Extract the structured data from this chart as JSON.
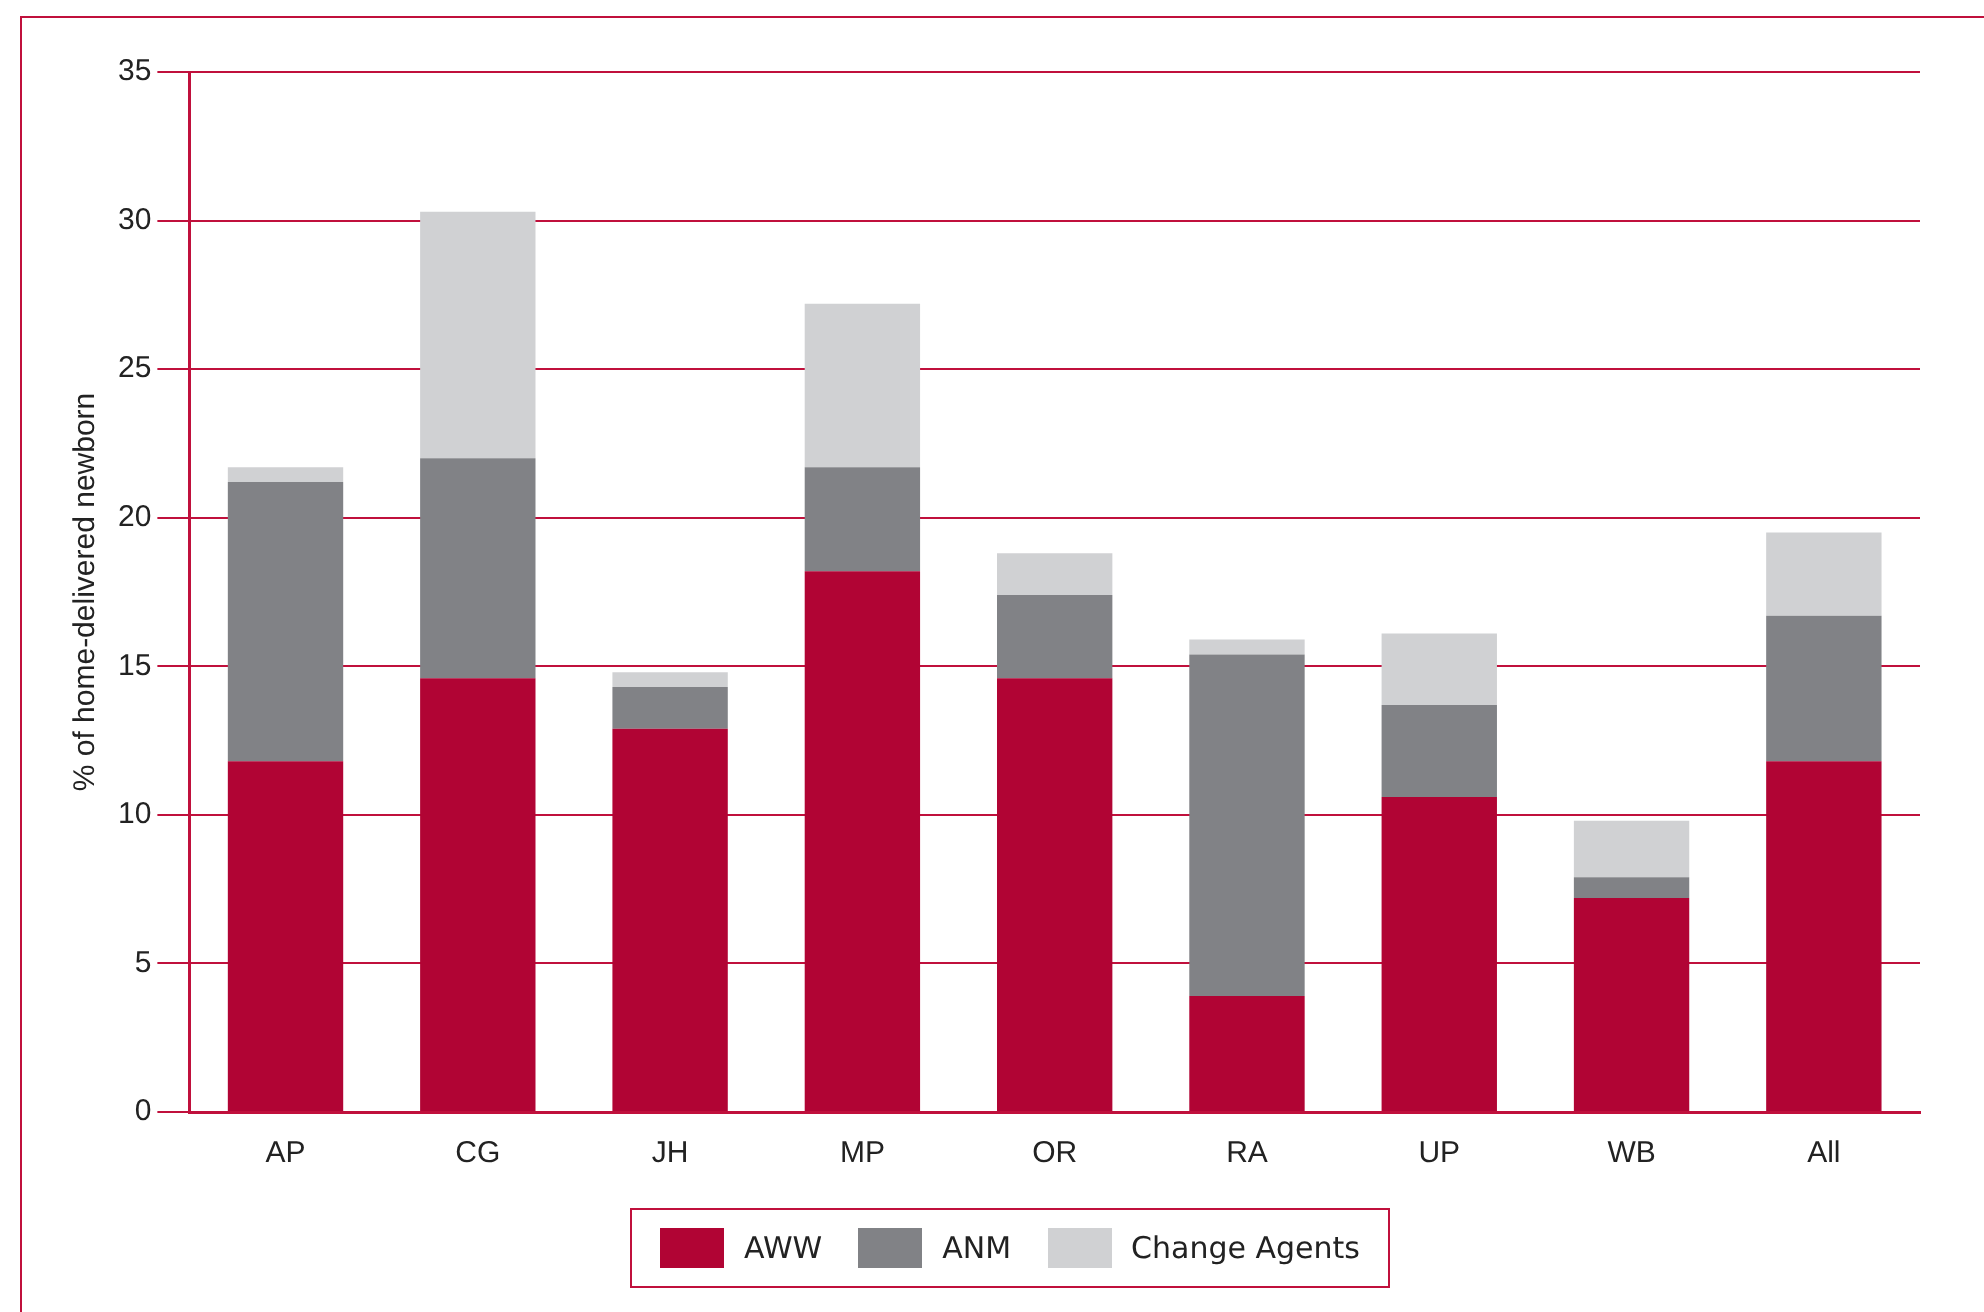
{
  "chart_data": {
    "type": "bar",
    "stacked": true,
    "ylabel": "% of home-delivered newborn",
    "categories": [
      "AP",
      "CG",
      "JH",
      "MP",
      "OR",
      "RA",
      "UP",
      "WB",
      "All"
    ],
    "series": [
      {
        "name": "AWW",
        "color": "#b10434",
        "values": [
          11.8,
          14.6,
          12.9,
          18.2,
          14.6,
          3.9,
          10.6,
          7.2,
          11.8
        ]
      },
      {
        "name": "ANM",
        "color": "#818286",
        "values": [
          9.4,
          7.4,
          1.4,
          3.5,
          2.8,
          11.5,
          3.1,
          0.7,
          4.9
        ]
      },
      {
        "name": "Change Agents",
        "color": "#d0d1d3",
        "values": [
          0.5,
          8.3,
          0.5,
          5.5,
          1.4,
          0.5,
          2.4,
          1.9,
          2.8
        ]
      }
    ],
    "ylim": [
      0,
      35
    ],
    "yticks": [
      0,
      5,
      10,
      15,
      20,
      25,
      30,
      35
    ],
    "grid": "y",
    "legend": "bottom"
  }
}
